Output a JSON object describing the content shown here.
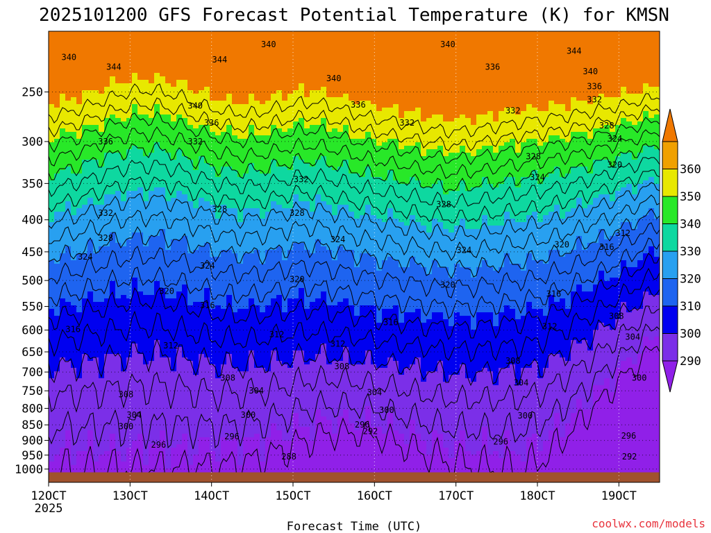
{
  "chart_data": {
    "type": "heatmap",
    "title": "2025101200 GFS Forecast Potential Temperature (K) for KMSN",
    "xlabel": "Forecast Time (UTC)",
    "ylabel": "",
    "credit": "coolwx.com/models",
    "x_ticks": [
      {
        "label": "12OCT",
        "sub": "2025",
        "day": 12
      },
      {
        "label": "13OCT",
        "day": 13
      },
      {
        "label": "14OCT",
        "day": 14
      },
      {
        "label": "15OCT",
        "day": 15
      },
      {
        "label": "16OCT",
        "day": 16
      },
      {
        "label": "17OCT",
        "day": 17
      },
      {
        "label": "18OCT",
        "day": 18
      },
      {
        "label": "19OCT",
        "day": 19
      }
    ],
    "x_range_days": [
      12.0,
      19.5
    ],
    "y_scale": "log-pressure",
    "y_range_hpa": [
      1050,
      200
    ],
    "y_ticks": [
      250,
      300,
      350,
      400,
      450,
      500,
      550,
      600,
      650,
      700,
      750,
      800,
      850,
      900,
      950,
      1000
    ],
    "colorbar": {
      "levels": [
        290,
        300,
        310,
        320,
        330,
        340,
        350,
        360
      ],
      "colors": [
        "#7b2fe8",
        "#0000f0",
        "#1e64f0",
        "#28a0f0",
        "#0ed8a0",
        "#28e828",
        "#e8e800",
        "#f0a000"
      ],
      "under_color": "#9020e8",
      "over_color": "#f07800"
    },
    "ground_color": "#a0522d",
    "contour_labels": [
      {
        "v": "340",
        "day": 12.25,
        "p": 220
      },
      {
        "v": "344",
        "day": 12.8,
        "p": 228
      },
      {
        "v": "344",
        "day": 14.1,
        "p": 222
      },
      {
        "v": "340",
        "day": 15.5,
        "p": 238
      },
      {
        "v": "340",
        "day": 16.9,
        "p": 210
      },
      {
        "v": "336",
        "day": 17.45,
        "p": 228
      },
      {
        "v": "340",
        "day": 14.7,
        "p": 210
      },
      {
        "v": "344",
        "day": 18.45,
        "p": 215
      },
      {
        "v": "340",
        "day": 18.65,
        "p": 232
      },
      {
        "v": "336",
        "day": 18.7,
        "p": 245
      },
      {
        "v": "332",
        "day": 18.7,
        "p": 257
      },
      {
        "v": "340",
        "day": 13.8,
        "p": 263
      },
      {
        "v": "336",
        "day": 14.0,
        "p": 280
      },
      {
        "v": "336",
        "day": 15.8,
        "p": 262
      },
      {
        "v": "332",
        "day": 16.4,
        "p": 280
      },
      {
        "v": "332",
        "day": 17.7,
        "p": 268
      },
      {
        "v": "328",
        "day": 18.85,
        "p": 283
      },
      {
        "v": "324",
        "day": 18.95,
        "p": 297
      },
      {
        "v": "336",
        "day": 12.7,
        "p": 300
      },
      {
        "v": "332",
        "day": 13.8,
        "p": 300
      },
      {
        "v": "328",
        "day": 17.95,
        "p": 317
      },
      {
        "v": "320",
        "day": 18.95,
        "p": 327
      },
      {
        "v": "332",
        "day": 15.1,
        "p": 345
      },
      {
        "v": "324",
        "day": 18.0,
        "p": 342
      },
      {
        "v": "328",
        "day": 16.85,
        "p": 378
      },
      {
        "v": "332",
        "day": 12.7,
        "p": 390
      },
      {
        "v": "328",
        "day": 14.1,
        "p": 385
      },
      {
        "v": "328",
        "day": 15.05,
        "p": 390
      },
      {
        "v": "312",
        "day": 19.05,
        "p": 420
      },
      {
        "v": "328",
        "day": 12.7,
        "p": 428
      },
      {
        "v": "324",
        "day": 15.55,
        "p": 430
      },
      {
        "v": "320",
        "day": 18.3,
        "p": 438
      },
      {
        "v": "316",
        "day": 18.85,
        "p": 442
      },
      {
        "v": "324",
        "day": 17.1,
        "p": 447
      },
      {
        "v": "324",
        "day": 12.45,
        "p": 458
      },
      {
        "v": "324",
        "day": 13.95,
        "p": 474
      },
      {
        "v": "320",
        "day": 15.05,
        "p": 498
      },
      {
        "v": "320",
        "day": 16.9,
        "p": 508
      },
      {
        "v": "316",
        "day": 18.2,
        "p": 525
      },
      {
        "v": "320",
        "day": 13.45,
        "p": 520
      },
      {
        "v": "316",
        "day": 13.95,
        "p": 548
      },
      {
        "v": "308",
        "day": 18.97,
        "p": 570
      },
      {
        "v": "316",
        "day": 16.2,
        "p": 583
      },
      {
        "v": "312",
        "day": 18.15,
        "p": 592
      },
      {
        "v": "316",
        "day": 12.3,
        "p": 598
      },
      {
        "v": "312",
        "day": 14.8,
        "p": 610
      },
      {
        "v": "304",
        "day": 19.17,
        "p": 615
      },
      {
        "v": "312",
        "day": 15.55,
        "p": 631
      },
      {
        "v": "312",
        "day": 13.5,
        "p": 635
      },
      {
        "v": "308",
        "day": 17.7,
        "p": 672
      },
      {
        "v": "308",
        "day": 15.6,
        "p": 686
      },
      {
        "v": "300",
        "day": 19.25,
        "p": 715
      },
      {
        "v": "308",
        "day": 14.2,
        "p": 715
      },
      {
        "v": "304",
        "day": 17.8,
        "p": 728
      },
      {
        "v": "304",
        "day": 14.55,
        "p": 750
      },
      {
        "v": "304",
        "day": 16.0,
        "p": 755
      },
      {
        "v": "308",
        "day": 12.95,
        "p": 760
      },
      {
        "v": "300",
        "day": 16.15,
        "p": 805
      },
      {
        "v": "304",
        "day": 13.05,
        "p": 820
      },
      {
        "v": "300",
        "day": 14.45,
        "p": 820
      },
      {
        "v": "300",
        "day": 17.85,
        "p": 822
      },
      {
        "v": "296",
        "day": 15.85,
        "p": 850
      },
      {
        "v": "300",
        "day": 12.95,
        "p": 855
      },
      {
        "v": "292",
        "day": 15.95,
        "p": 870
      },
      {
        "v": "296",
        "day": 14.25,
        "p": 887
      },
      {
        "v": "296",
        "day": 19.12,
        "p": 885
      },
      {
        "v": "296",
        "day": 17.55,
        "p": 905
      },
      {
        "v": "296",
        "day": 13.35,
        "p": 915
      },
      {
        "v": "288",
        "day": 14.95,
        "p": 955
      },
      {
        "v": "292",
        "day": 19.13,
        "p": 955
      }
    ]
  }
}
